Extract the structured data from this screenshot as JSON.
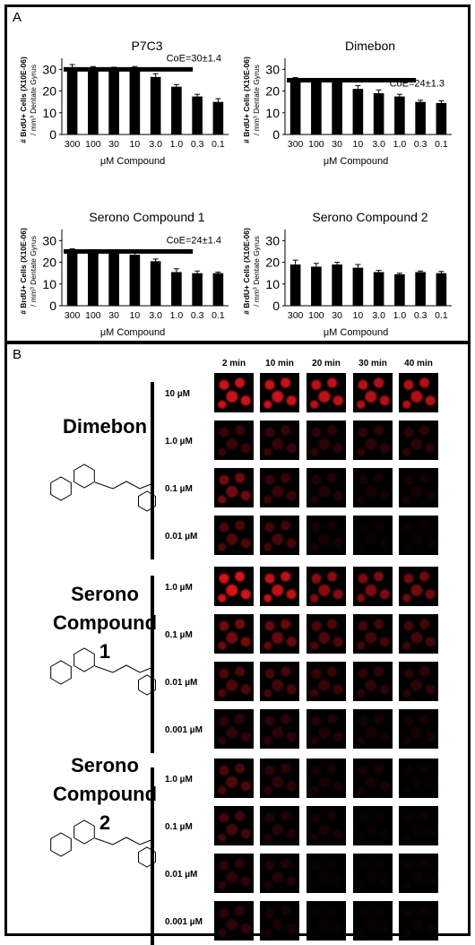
{
  "panel_a": {
    "letter": "A",
    "coe_labels": [
      "CoE=30±1.4",
      "CoE=24±1.3",
      "CoE=24±1.4",
      ""
    ]
  },
  "panel_b": {
    "letter": "B",
    "time_labels": [
      "2 min",
      "10 min",
      "20 min",
      "30 min",
      "40 min"
    ],
    "groups": [
      {
        "name_lines": [
          "Dimebon"
        ],
        "concentrations": [
          "10 µM",
          "1.0 µM",
          "0.1 µM",
          "0.01 µM"
        ],
        "intensity": [
          [
            0.9,
            0.9,
            0.85,
            0.8,
            0.8
          ],
          [
            0.25,
            0.25,
            0.2,
            0.2,
            0.2
          ],
          [
            0.5,
            0.25,
            0.15,
            0.1,
            0.1
          ],
          [
            0.35,
            0.3,
            0.1,
            0.05,
            0.05
          ]
        ]
      },
      {
        "name_lines": [
          "Serono",
          "Compound 1"
        ],
        "concentrations": [
          "1.0 µM",
          "0.1 µM",
          "0.01 µM",
          "0.001 µM"
        ],
        "intensity": [
          [
            0.95,
            0.85,
            0.6,
            0.55,
            0.5
          ],
          [
            0.5,
            0.45,
            0.35,
            0.3,
            0.3
          ],
          [
            0.35,
            0.3,
            0.25,
            0.2,
            0.2
          ],
          [
            0.2,
            0.2,
            0.15,
            0.1,
            0.1
          ]
        ]
      },
      {
        "name_lines": [
          "Serono",
          "Compound 2"
        ],
        "concentrations": [
          "1.0 µM",
          "0.1 µM",
          "0.01 µM",
          "0.001 µM"
        ],
        "intensity": [
          [
            0.35,
            0.2,
            0.1,
            0.1,
            0.05
          ],
          [
            0.3,
            0.15,
            0.1,
            0.05,
            0.05
          ],
          [
            0.2,
            0.15,
            0.05,
            0.05,
            0.05
          ],
          [
            0.2,
            0.1,
            0.05,
            0.05,
            0.05
          ]
        ]
      }
    ],
    "cell_color": "#e0141c"
  },
  "chart_data": [
    {
      "type": "bar",
      "title": "P7C3",
      "xlabel": "μM Compound",
      "ylabel": "# BrdU+ Cells (X10E-06) / mm³ Dentate Gyrus",
      "categories": [
        "300",
        "100",
        "30",
        "10",
        "3.0",
        "1.0",
        "0.3",
        "0.1"
      ],
      "values": [
        31,
        30.5,
        30,
        30.5,
        26.5,
        22,
        17.5,
        15
      ],
      "errors": [
        1.2,
        0.8,
        1,
        0.8,
        1.5,
        1,
        1,
        1.5
      ],
      "reference_line": 30,
      "annotation": "CoE=30±1.4",
      "ylim": [
        0,
        30
      ],
      "yticks": [
        0,
        10,
        20,
        30
      ]
    },
    {
      "type": "bar",
      "title": "Dimebon",
      "xlabel": "μM Compound",
      "ylabel": "# BrdU+ Cells (X10E-06) / mm³ Dentate Gyrus",
      "categories": [
        "300",
        "100",
        "30",
        "10",
        "3.0",
        "1.0",
        "0.3",
        "0.1"
      ],
      "values": [
        25,
        24.5,
        24,
        21,
        19,
        17.5,
        15,
        14.5
      ],
      "errors": [
        1.2,
        0.8,
        1.2,
        1.5,
        1.5,
        1,
        0.8,
        1
      ],
      "reference_line": 25,
      "annotation": "CoE=24±1.3",
      "ylim": [
        0,
        30
      ],
      "yticks": [
        0,
        10,
        20,
        30
      ]
    },
    {
      "type": "bar",
      "title": "Serono Compound 1",
      "xlabel": "μM Compound",
      "ylabel": "# BrdU+ Cells (X10E-06) / mm³ Dentate Gyrus",
      "categories": [
        "300",
        "100",
        "30",
        "10",
        "3.0",
        "1.0",
        "0.3",
        "0.1"
      ],
      "values": [
        25,
        25,
        24.5,
        23.5,
        20.5,
        15.5,
        15,
        15
      ],
      "errors": [
        1.2,
        0.8,
        0.8,
        0.8,
        1,
        1.5,
        1,
        0.5
      ],
      "reference_line": 25,
      "annotation": "CoE=24±1.4",
      "ylim": [
        0,
        30
      ],
      "yticks": [
        0,
        10,
        20,
        30
      ]
    },
    {
      "type": "bar",
      "title": "Serono Compound 2",
      "xlabel": "μM Compound",
      "ylabel": "# BrdU+ Cells (X10E-06) / mm³ Dentate Gyrus",
      "categories": [
        "300",
        "100",
        "30",
        "10",
        "3.0",
        "1.0",
        "0.3",
        "0.1"
      ],
      "values": [
        19,
        18,
        19,
        17.5,
        15.5,
        14.5,
        15.5,
        15
      ],
      "errors": [
        2,
        1.5,
        1,
        1.5,
        0.8,
        0.5,
        0.5,
        0.8
      ],
      "reference_line": null,
      "annotation": "",
      "ylim": [
        0,
        30
      ],
      "yticks": [
        0,
        10,
        20,
        30
      ]
    }
  ]
}
